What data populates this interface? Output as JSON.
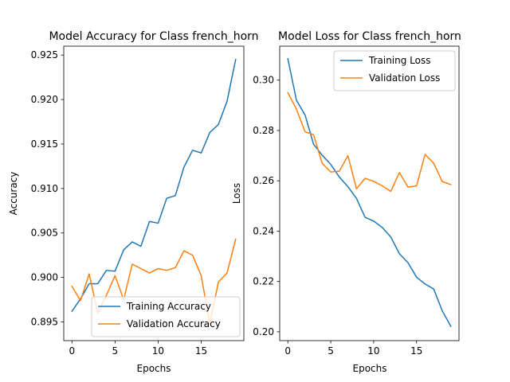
{
  "chart_data": [
    {
      "type": "line",
      "title": "Model Accuracy for Class french_horn",
      "xlabel": "Epochs",
      "ylabel": "Accuracy",
      "xlim": [
        -0.95,
        19.95
      ],
      "ylim": [
        0.8929,
        0.926
      ],
      "xticks": [
        0,
        5,
        10,
        15
      ],
      "yticks": [
        0.895,
        0.9,
        0.905,
        0.91,
        0.915,
        0.92,
        0.925
      ],
      "ytick_labels": [
        "0.895",
        "0.900",
        "0.905",
        "0.910",
        "0.915",
        "0.920",
        "0.925"
      ],
      "legend_position": "lower-right",
      "x": [
        0,
        1,
        2,
        3,
        4,
        5,
        6,
        7,
        8,
        9,
        10,
        11,
        12,
        13,
        14,
        15,
        16,
        17,
        18,
        19
      ],
      "series": [
        {
          "name": "Training Accuracy",
          "color": "#1f77b4",
          "values": [
            0.8962,
            0.8976,
            0.8993,
            0.8993,
            0.9008,
            0.9007,
            0.9031,
            0.904,
            0.9035,
            0.9063,
            0.9061,
            0.9089,
            0.9092,
            0.9124,
            0.9143,
            0.914,
            0.9163,
            0.9172,
            0.9198,
            0.9245
          ]
        },
        {
          "name": "Validation Accuracy",
          "color": "#ff7f0e",
          "values": [
            0.899,
            0.8974,
            0.9004,
            0.896,
            0.898,
            0.9002,
            0.8975,
            0.9015,
            0.901,
            0.9005,
            0.901,
            0.9008,
            0.9011,
            0.903,
            0.9025,
            0.9002,
            0.8948,
            0.8995,
            0.9005,
            0.9043
          ]
        }
      ]
    },
    {
      "type": "line",
      "title": "Model Loss for Class french_horn",
      "xlabel": "Epochs",
      "ylabel": "Loss",
      "xlim": [
        -0.95,
        19.95
      ],
      "ylim": [
        0.1965,
        0.3135
      ],
      "xticks": [
        0,
        5,
        10,
        15
      ],
      "yticks": [
        0.2,
        0.22,
        0.24,
        0.26,
        0.28,
        0.3
      ],
      "ytick_labels": [
        "0.20",
        "0.22",
        "0.24",
        "0.26",
        "0.28",
        "0.30"
      ],
      "legend_position": "upper-right",
      "x": [
        0,
        1,
        2,
        3,
        4,
        5,
        6,
        7,
        8,
        9,
        10,
        11,
        12,
        13,
        14,
        15,
        16,
        17,
        18,
        19
      ],
      "series": [
        {
          "name": "Training Loss",
          "color": "#1f77b4",
          "values": [
            0.3085,
            0.292,
            0.2862,
            0.2745,
            0.2702,
            0.2665,
            0.2615,
            0.2577,
            0.253,
            0.2455,
            0.244,
            0.2415,
            0.2377,
            0.231,
            0.2275,
            0.2217,
            0.219,
            0.217,
            0.2083,
            0.2022
          ]
        },
        {
          "name": "Validation Loss",
          "color": "#ff7f0e",
          "values": [
            0.295,
            0.2885,
            0.2795,
            0.2783,
            0.267,
            0.2635,
            0.2638,
            0.27,
            0.2568,
            0.261,
            0.2598,
            0.258,
            0.2558,
            0.2633,
            0.2575,
            0.258,
            0.2705,
            0.267,
            0.2597,
            0.2585
          ]
        }
      ]
    }
  ]
}
